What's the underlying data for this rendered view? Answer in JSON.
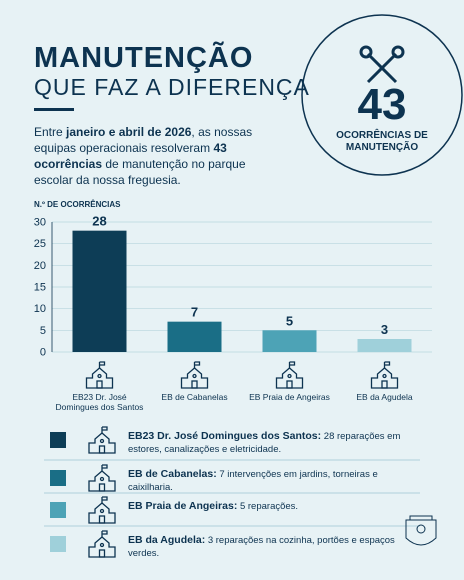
{
  "header": {
    "title": "MANUTENÇÃO",
    "subtitle": "QUE FAZ A DIFERENÇA"
  },
  "highlight": {
    "value": "43",
    "label": "OCORRÊNCIAS DE MANUTENÇÃO"
  },
  "intro": [
    "Entre ",
    "janeiro e abril de 2026",
    ", as nossas equipas operacionais resolveram ",
    "43 ocorrências",
    " de manutenção no parque escolar da nossa freguesia."
  ],
  "chart_data": {
    "type": "bar",
    "y_label": "N.º DE OCORRÊNCIAS",
    "categories": [
      "EB23 Dr. José Domingues dos Santos",
      "EB de Cabanelas",
      "EB Praia de Angeiras",
      "EB da Agudela"
    ],
    "values": [
      28,
      7,
      5,
      3
    ],
    "colors": [
      "#0d3d56",
      "#1a6e86",
      "#4da3b6",
      "#9fd0da"
    ],
    "ylim": [
      0,
      30
    ],
    "yticks": [
      0,
      5,
      10,
      15,
      20,
      25,
      30
    ],
    "grid": true
  },
  "legend": [
    {
      "name": "EB23 Dr. José Domingues dos Santos:",
      "text": "28 reparações em estores, canalizações e eletricidade."
    },
    {
      "name": "EB de Cabanelas:",
      "text": "7 intervenções em jardins, torneiras e caixilharia."
    },
    {
      "name": "EB Praia de Angeiras:",
      "text": "5 reparações."
    },
    {
      "name": "EB da Agudela:",
      "text": "3 reparações na cozinha, portões e espaços verdes."
    }
  ]
}
